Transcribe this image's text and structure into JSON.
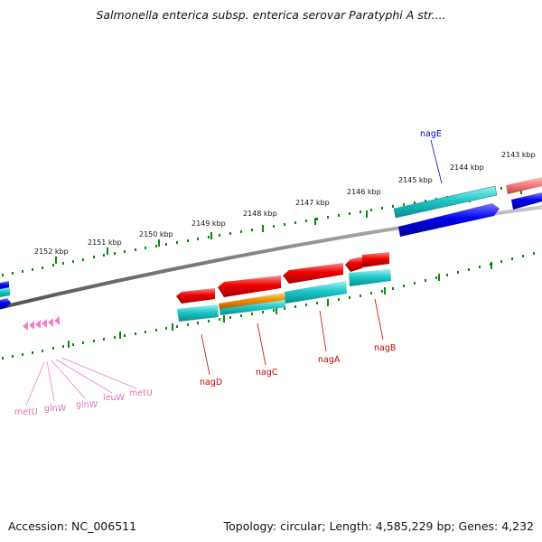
{
  "title": "Salmonella enterica subsp. enterica serovar Paratyphi A str....",
  "footer": {
    "accession": "Accession: NC_006511",
    "summary": "Topology: circular; Length: 4,585,229 bp; Genes: 4,232"
  },
  "ticks": [
    "2152 kbp",
    "2151 kbp",
    "2150 kbp",
    "2149 kbp",
    "2148 kbp",
    "2147 kbp",
    "2146 kbp",
    "2145 kbp",
    "2144 kbp",
    "2143 kbp"
  ],
  "gene_labels": {
    "nagE": "nagE",
    "nagD": "nagD",
    "nagC": "nagC",
    "nagA": "nagA",
    "nagB": "nagB",
    "metU_1": "metU",
    "glnW_1": "glnW",
    "glnW_2": "glnW",
    "leuW": "leuW",
    "metU_2": "metU"
  },
  "colors": {
    "backbone": "#808080",
    "tick_green": "#0a8a0a",
    "red": "#ee0000",
    "cyan": "#1ec8c8",
    "blue": "#0000ee",
    "orange": "#f08c00",
    "salmon": "#f07878",
    "pink": "#f080c8",
    "label_blue": "#0000cc",
    "label_red": "#cc0000",
    "label_pink": "#e070b0"
  }
}
